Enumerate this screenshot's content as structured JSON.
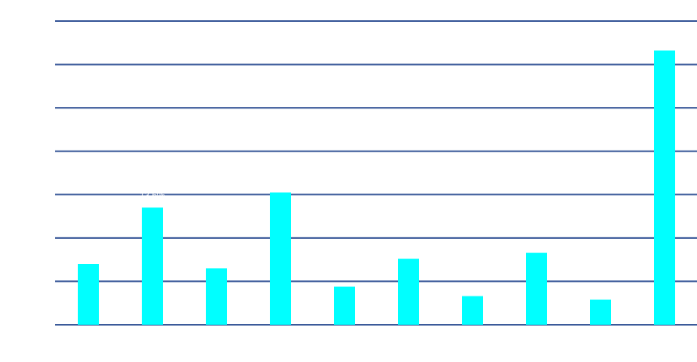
{
  "chart_data": {
    "type": "bar",
    "title": "",
    "xlabel": "",
    "ylabel": "",
    "categories": [
      "",
      "",
      "",
      "",
      "",
      "",
      "",
      "",
      "",
      ""
    ],
    "values": [
      14,
      27,
      13,
      30.5,
      8.8,
      15.2,
      6.6,
      16.6,
      5.8,
      63.2
    ],
    "ylim": [
      0,
      70
    ],
    "grid": true,
    "colors": {
      "bar": "#00ffff",
      "grid": "#3b5a9a",
      "background": "#ffffff"
    },
    "annotations": [
      {
        "index": 1,
        "text": "13.6%"
      }
    ]
  }
}
